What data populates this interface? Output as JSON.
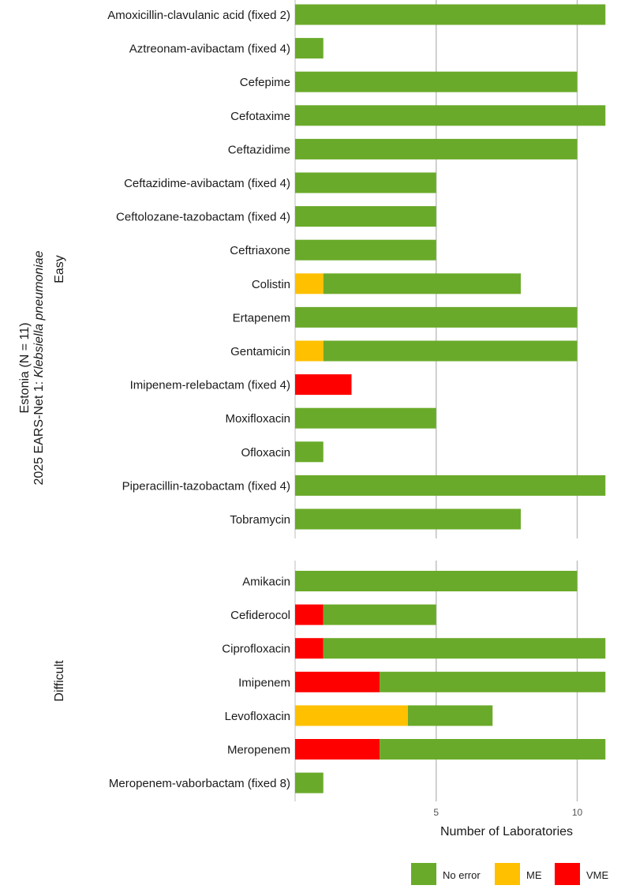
{
  "chart_data": {
    "type": "bar",
    "orientation": "horizontal",
    "stacked": true,
    "title_lines": [
      "Estonia (N = 11)",
      "2025 EARS-Net 1: "
    ],
    "title_italic": "Klebsiella pneumoniae",
    "xlabel": "Number of Laboratories",
    "xlim": [
      0,
      11
    ],
    "xticks": [
      5,
      10
    ],
    "grid": true,
    "legend_position": "bottom-right",
    "series": [
      {
        "name": "No error",
        "color": "#6aaa2a"
      },
      {
        "name": "ME",
        "color": "#ffc000"
      },
      {
        "name": "VME",
        "color": "#ff0000"
      }
    ],
    "panels": [
      {
        "label": "Easy",
        "rows": [
          {
            "category": "Amoxicillin-clavulanic acid (fixed 2)",
            "No error": 11,
            "ME": 0,
            "VME": 0
          },
          {
            "category": "Aztreonam-avibactam (fixed 4)",
            "No error": 1,
            "ME": 0,
            "VME": 0
          },
          {
            "category": "Cefepime",
            "No error": 10,
            "ME": 0,
            "VME": 0
          },
          {
            "category": "Cefotaxime",
            "No error": 11,
            "ME": 0,
            "VME": 0
          },
          {
            "category": "Ceftazidime",
            "No error": 10,
            "ME": 0,
            "VME": 0
          },
          {
            "category": "Ceftazidime-avibactam (fixed 4)",
            "No error": 5,
            "ME": 0,
            "VME": 0
          },
          {
            "category": "Ceftolozane-tazobactam (fixed 4)",
            "No error": 5,
            "ME": 0,
            "VME": 0
          },
          {
            "category": "Ceftriaxone",
            "No error": 5,
            "ME": 0,
            "VME": 0
          },
          {
            "category": "Colistin",
            "No error": 7,
            "ME": 1,
            "VME": 0
          },
          {
            "category": "Ertapenem",
            "No error": 10,
            "ME": 0,
            "VME": 0
          },
          {
            "category": "Gentamicin",
            "No error": 9,
            "ME": 1,
            "VME": 0
          },
          {
            "category": "Imipenem-relebactam (fixed 4)",
            "No error": 0,
            "ME": 0,
            "VME": 2
          },
          {
            "category": "Moxifloxacin",
            "No error": 5,
            "ME": 0,
            "VME": 0
          },
          {
            "category": "Ofloxacin",
            "No error": 1,
            "ME": 0,
            "VME": 0
          },
          {
            "category": "Piperacillin-tazobactam (fixed 4)",
            "No error": 11,
            "ME": 0,
            "VME": 0
          },
          {
            "category": "Tobramycin",
            "No error": 8,
            "ME": 0,
            "VME": 0
          }
        ]
      },
      {
        "label": "Difficult",
        "rows": [
          {
            "category": "Amikacin",
            "No error": 10,
            "ME": 0,
            "VME": 0
          },
          {
            "category": "Cefiderocol",
            "No error": 4,
            "ME": 0,
            "VME": 1
          },
          {
            "category": "Ciprofloxacin",
            "No error": 10,
            "ME": 0,
            "VME": 1
          },
          {
            "category": "Imipenem",
            "No error": 8,
            "ME": 0,
            "VME": 3
          },
          {
            "category": "Levofloxacin",
            "No error": 3,
            "ME": 4,
            "VME": 0
          },
          {
            "category": "Meropenem",
            "No error": 8,
            "ME": 0,
            "VME": 3
          },
          {
            "category": "Meropenem-vaborbactam (fixed 8)",
            "No error": 1,
            "ME": 0,
            "VME": 0
          }
        ]
      }
    ]
  }
}
